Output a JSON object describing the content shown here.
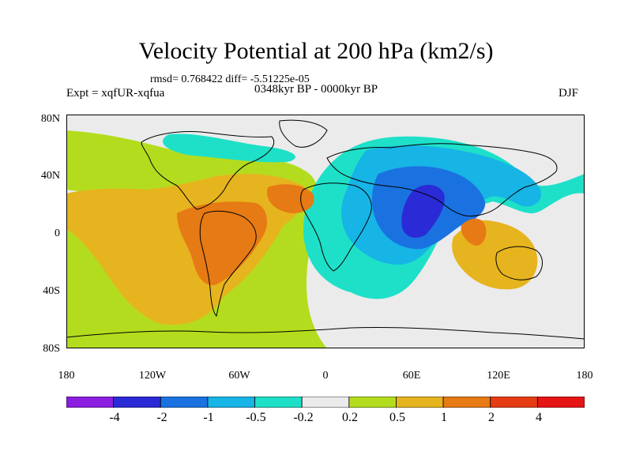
{
  "title": "Velocity Potential at 200 hPa (km2/s)",
  "stats_line": "rmsd= 0.768422 diff= -5.51225e-05",
  "expt_line": "Expt = xqfUR-xqfua",
  "period_line": "0348kyr BP - 0000kyr BP",
  "season": "DJF",
  "lat_ticks": [
    "80N",
    "40N",
    "0",
    "40S",
    "80S"
  ],
  "lon_ticks": [
    "180",
    "120W",
    "60W",
    "0",
    "60E",
    "120E",
    "180"
  ],
  "colorbar": {
    "labels": [
      "-4",
      "-2",
      "-1",
      "-0.5",
      "-0.2",
      "0.2",
      "0.5",
      "1",
      "2",
      "4"
    ],
    "colors": [
      "#8b1ee0",
      "#2a2ad6",
      "#1a72e0",
      "#17b4e6",
      "#1ee0c8",
      "#ebebeb",
      "#b4dc1e",
      "#e6b41e",
      "#e67a14",
      "#e63c14",
      "#e61414"
    ]
  },
  "map_colors": {
    "neutral": "#ebebeb",
    "pos_weak": "#b4dc1e",
    "pos_mid": "#e6b41e",
    "pos_strong": "#e67a14",
    "neg_weak": "#1ee0c8",
    "neg_light": "#17b4e6",
    "neg_mid": "#1a72e0",
    "neg_strong": "#2a2ad6"
  }
}
